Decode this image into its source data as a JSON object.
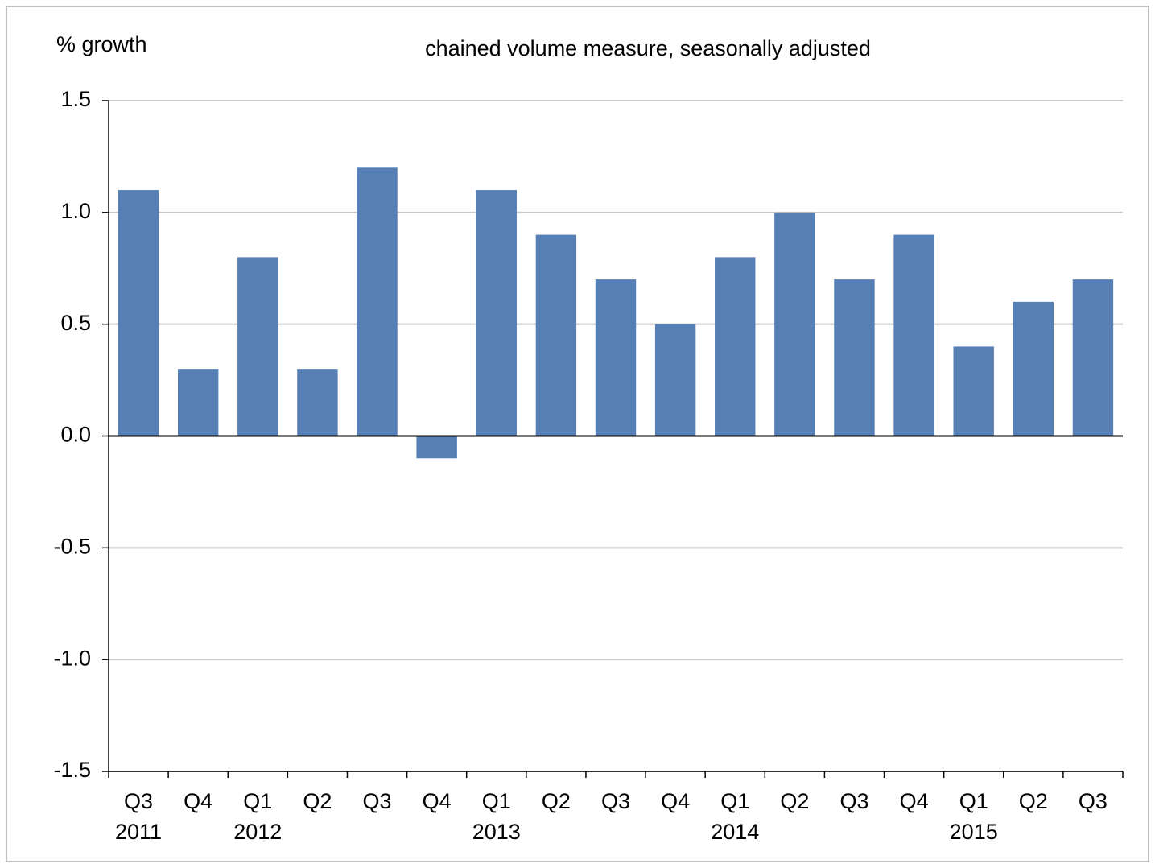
{
  "chart_data": {
    "type": "bar",
    "title": "chained volume measure, seasonally adjusted",
    "y_axis_label": "% growth",
    "categories": [
      "Q3",
      "Q4",
      "Q1",
      "Q2",
      "Q3",
      "Q4",
      "Q1",
      "Q2",
      "Q3",
      "Q4",
      "Q1",
      "Q2",
      "Q3",
      "Q4",
      "Q1",
      "Q2",
      "Q3"
    ],
    "x_group_labels": [
      "2011",
      null,
      "2012",
      null,
      null,
      null,
      "2013",
      null,
      null,
      null,
      "2014",
      null,
      null,
      null,
      "2015",
      null,
      null
    ],
    "values": [
      1.1,
      0.3,
      0.8,
      0.3,
      1.2,
      -0.1,
      1.1,
      0.9,
      0.7,
      0.5,
      0.8,
      1.0,
      0.7,
      0.9,
      0.4,
      0.6,
      0.7
    ],
    "color": "#557fb5",
    "ylim": [
      -1.5,
      1.5
    ],
    "yticks": [
      -1.5,
      {
        "value": -1,
        "label": "-1.0"
      },
      -0.5,
      {
        "value": 0,
        "label": "0.0"
      },
      0.5,
      {
        "value": 1,
        "label": "1.0"
      },
      1.5
    ],
    "grid": true
  }
}
